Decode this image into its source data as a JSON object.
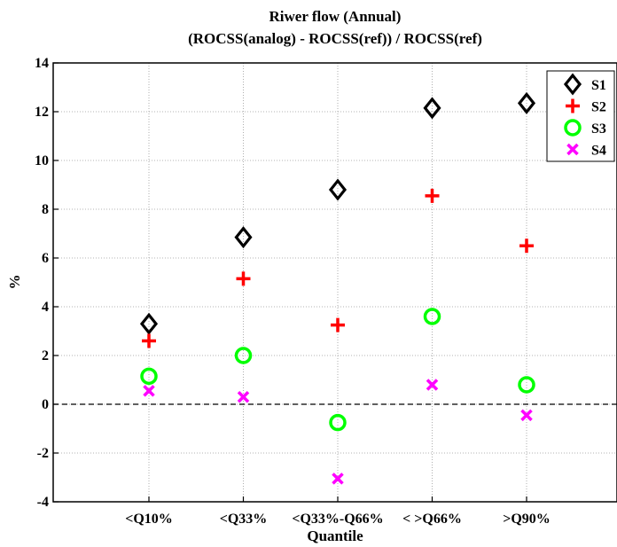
{
  "chart_data": {
    "type": "scatter",
    "title": "Riwer flow (Annual)",
    "subtitle": "(ROCSS(analog) - ROCSS(ref)) / ROCSS(ref)",
    "xlabel": "Quantile",
    "ylabel": "%",
    "categories": [
      "<Q10%",
      "<Q33%",
      "<Q33%-Q66%",
      "< >Q66%",
      ">Q90%"
    ],
    "ylim": [
      -4,
      14
    ],
    "yticks": [
      -4,
      -2,
      0,
      2,
      4,
      6,
      8,
      10,
      12,
      14
    ],
    "grid": true,
    "zero_line": "dashed",
    "legend_position": "top-right",
    "series": [
      {
        "name": "S1",
        "marker": "diamond",
        "color": "#000000",
        "values": [
          3.3,
          6.85,
          8.8,
          12.15,
          12.35
        ]
      },
      {
        "name": "S2",
        "marker": "plus",
        "color": "#ff0000",
        "values": [
          2.6,
          5.15,
          3.25,
          8.55,
          6.5
        ]
      },
      {
        "name": "S3",
        "marker": "circle",
        "color": "#00ff00",
        "values": [
          1.15,
          2.0,
          -0.75,
          3.6,
          0.8
        ]
      },
      {
        "name": "S4",
        "marker": "x",
        "color": "#ff00ff",
        "values": [
          0.55,
          0.3,
          -3.05,
          0.8,
          -0.45
        ]
      }
    ]
  }
}
